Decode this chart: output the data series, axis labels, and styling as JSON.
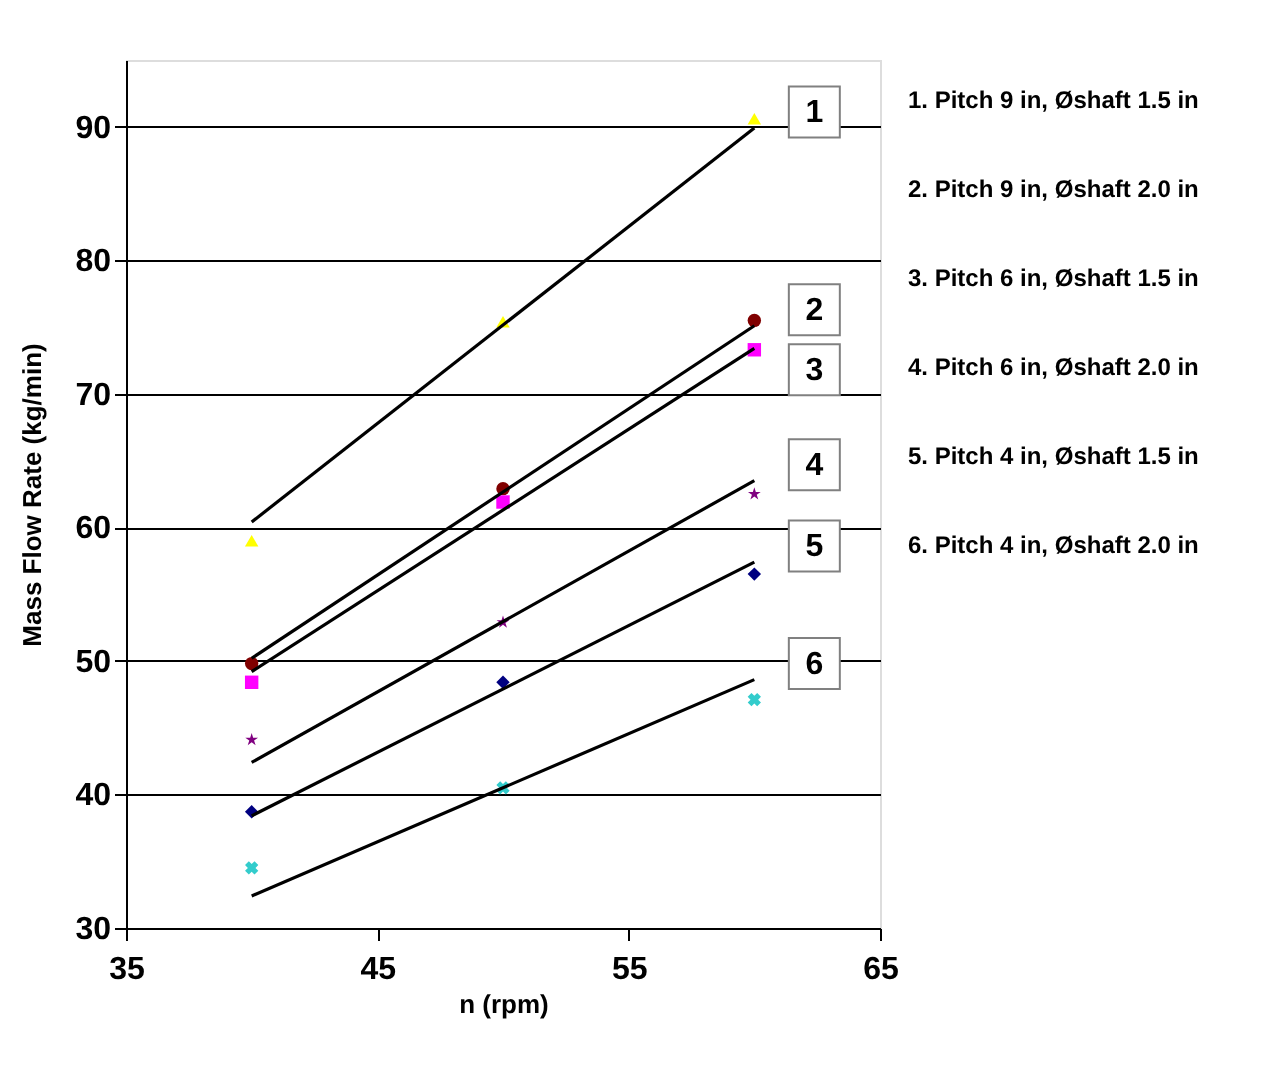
{
  "chart_data": {
    "type": "scatter",
    "xlabel": "n (rpm)",
    "ylabel": "Mass Flow Rate (kg/min)",
    "xlim": [
      35,
      65
    ],
    "xticks": [
      35,
      45,
      55,
      65
    ],
    "ylim": [
      30,
      95
    ],
    "yticks": [
      30,
      40,
      50,
      60,
      70,
      80,
      90
    ],
    "grid": "y",
    "series": [
      {
        "marker": "triangle",
        "color": "#ffff00",
        "x": [
          40,
          50,
          60
        ],
        "values": [
          59.0,
          75.4,
          90.6
        ]
      },
      {
        "marker": "circle",
        "color": "#800000",
        "x": [
          40,
          50,
          60
        ],
        "values": [
          49.8,
          62.9,
          75.5
        ]
      },
      {
        "marker": "square",
        "color": "#ff00ff",
        "x": [
          40,
          50,
          60
        ],
        "values": [
          48.4,
          61.9,
          73.3
        ]
      },
      {
        "marker": "star",
        "color": "#800080",
        "x": [
          40,
          50,
          60
        ],
        "values": [
          44.1,
          52.9,
          62.5
        ]
      },
      {
        "marker": "diamond",
        "color": "#000080",
        "x": [
          40,
          50,
          60
        ],
        "values": [
          38.7,
          48.4,
          56.5
        ]
      },
      {
        "marker": "cross",
        "color": "#33cccc",
        "x": [
          40,
          50,
          60
        ],
        "values": [
          34.5,
          40.5,
          47.1
        ]
      },
      {
        "type": "line",
        "name": "1",
        "marker": "none",
        "color": "#000000",
        "x": [
          40,
          60
        ],
        "values": [
          60.4,
          89.9
        ]
      },
      {
        "type": "line",
        "name": "2",
        "marker": "none",
        "color": "#000000",
        "x": [
          40,
          60
        ],
        "values": [
          50.2,
          75.1
        ]
      },
      {
        "type": "line",
        "name": "3",
        "marker": "none",
        "color": "#000000",
        "x": [
          40,
          60
        ],
        "values": [
          49.2,
          73.4
        ]
      },
      {
        "type": "line",
        "name": "4",
        "marker": "none",
        "color": "#000000",
        "x": [
          40,
          60
        ],
        "values": [
          42.4,
          63.5
        ]
      },
      {
        "type": "line",
        "name": "5",
        "marker": "none",
        "color": "#000000",
        "x": [
          40,
          60
        ],
        "values": [
          38.4,
          57.4
        ]
      },
      {
        "type": "line",
        "name": "6",
        "marker": "none",
        "color": "#000000",
        "x": [
          40,
          60
        ],
        "values": [
          32.4,
          48.6
        ]
      }
    ],
    "annotations": [
      "1. Pitch 9 in, Øshaft 1.5 in",
      "2. Pitch 9 in, Øshaft 2.0 in",
      "3. Pitch 6 in, Øshaft 1.5 in",
      "4. Pitch 6 in, Øshaft 2.0 in",
      "5. Pitch 4 in, Øshaft 1.5 in",
      "6. Pitch 4 in, Øshaft 2.0 in"
    ]
  }
}
